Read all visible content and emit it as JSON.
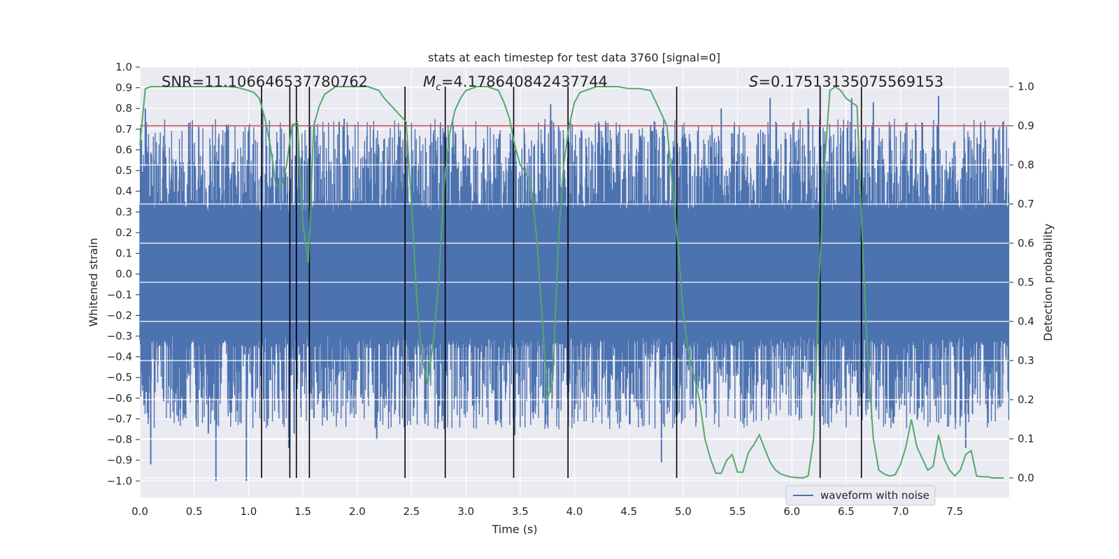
{
  "chart_data": {
    "type": "line",
    "title": "stats at each timestep for test data 3760 [signal=0]",
    "xlabel": "Time (s)",
    "ylabel_left": "Whitened strain",
    "ylabel_right": "Detection probability",
    "xlim": [
      0.0,
      8.0
    ],
    "ylim_left": [
      -1.08,
      1.0
    ],
    "ylim_right": [
      -0.05,
      1.05
    ],
    "grid": true,
    "legend": {
      "placement": "lower-right",
      "entries": [
        "waveform with noise"
      ]
    },
    "x_ticks": [
      "0.0",
      "0.5",
      "1.0",
      "1.5",
      "2.0",
      "2.5",
      "3.0",
      "3.5",
      "4.0",
      "4.5",
      "5.0",
      "5.5",
      "6.0",
      "6.5",
      "7.0",
      "7.5"
    ],
    "x_tick_values": [
      0.0,
      0.5,
      1.0,
      1.5,
      2.0,
      2.5,
      3.0,
      3.5,
      4.0,
      4.5,
      5.0,
      5.5,
      6.0,
      6.5,
      7.0,
      7.5
    ],
    "y_ticks_left": [
      "1.0",
      "0.9",
      "0.8",
      "0.7",
      "0.6",
      "0.5",
      "0.4",
      "0.3",
      "0.2",
      "0.1",
      "0.0",
      "−0.1",
      "−0.2",
      "−0.3",
      "−0.4",
      "−0.5",
      "−0.6",
      "−0.7",
      "−0.8",
      "−0.9",
      "−1.0"
    ],
    "y_tick_values_left": [
      1.0,
      0.9,
      0.8,
      0.7,
      0.6,
      0.5,
      0.4,
      0.3,
      0.2,
      0.1,
      0.0,
      -0.1,
      -0.2,
      -0.3,
      -0.4,
      -0.5,
      -0.6,
      -0.7,
      -0.8,
      -0.9,
      -1.0
    ],
    "y_ticks_right": [
      "1.0",
      "0.9",
      "0.8",
      "0.7",
      "0.6",
      "0.5",
      "0.4",
      "0.3",
      "0.2",
      "0.1",
      "0.0"
    ],
    "y_tick_values_right": [
      1.0,
      0.9,
      0.8,
      0.7,
      0.6,
      0.5,
      0.4,
      0.3,
      0.2,
      0.1,
      0.0
    ],
    "annotations": {
      "snr": {
        "text": "SNR=11.106646537780762"
      },
      "mc": {
        "prefix": "M",
        "subscript": "c",
        "suffix": "=4.178640842437744"
      },
      "s": {
        "prefix": "S",
        "suffix": "=0.17513135075569153"
      }
    },
    "waveform": {
      "name": "waveform with noise",
      "color": "#4c72b0",
      "duration_s": 8.0,
      "sample_step_s": 0.004,
      "core_amplitude": 0.3,
      "peak_amplitude_range": [
        0.5,
        0.75
      ],
      "spikes": [
        {
          "x": 0.05,
          "y": 0.8
        },
        {
          "x": 0.1,
          "y": -0.92
        },
        {
          "x": 0.45,
          "y": 0.73
        },
        {
          "x": 0.63,
          "y": -0.77
        },
        {
          "x": 0.7,
          "y": -1.0
        },
        {
          "x": 0.98,
          "y": -1.0
        },
        {
          "x": 1.13,
          "y": 0.78
        },
        {
          "x": 1.37,
          "y": -0.84
        },
        {
          "x": 1.42,
          "y": -0.77
        },
        {
          "x": 1.88,
          "y": 0.75
        },
        {
          "x": 2.18,
          "y": -0.8
        },
        {
          "x": 2.8,
          "y": -0.75
        },
        {
          "x": 3.45,
          "y": -0.78
        },
        {
          "x": 3.78,
          "y": 0.82
        },
        {
          "x": 4.7,
          "y": 0.72
        },
        {
          "x": 4.8,
          "y": -0.91
        },
        {
          "x": 5.35,
          "y": 0.8
        },
        {
          "x": 5.8,
          "y": 0.85
        },
        {
          "x": 6.15,
          "y": 0.8
        },
        {
          "x": 6.55,
          "y": 0.85
        },
        {
          "x": 6.75,
          "y": 0.83
        },
        {
          "x": 7.35,
          "y": 0.86
        },
        {
          "x": 7.6,
          "y": -0.84
        }
      ]
    },
    "threshold": {
      "y": 0.9,
      "axis": "right",
      "color": "#c44e52"
    },
    "probability": {
      "color": "#55a868",
      "x": [
        0.0,
        0.05,
        0.1,
        0.2,
        0.3,
        0.4,
        0.5,
        0.6,
        0.7,
        0.8,
        0.9,
        1.0,
        1.05,
        1.1,
        1.15,
        1.2,
        1.25,
        1.3,
        1.35,
        1.4,
        1.45,
        1.5,
        1.55,
        1.6,
        1.65,
        1.7,
        1.75,
        1.8,
        1.9,
        2.0,
        2.1,
        2.2,
        2.25,
        2.35,
        2.45,
        2.5,
        2.55,
        2.6,
        2.65,
        2.7,
        2.75,
        2.8,
        2.85,
        2.9,
        2.95,
        3.0,
        3.05,
        3.1,
        3.2,
        3.3,
        3.35,
        3.4,
        3.45,
        3.5,
        3.55,
        3.6,
        3.65,
        3.7,
        3.75,
        3.8,
        3.85,
        3.9,
        3.95,
        4.0,
        4.05,
        4.1,
        4.2,
        4.3,
        4.4,
        4.5,
        4.6,
        4.7,
        4.75,
        4.8,
        4.85,
        4.9,
        4.95,
        5.0,
        5.05,
        5.1,
        5.15,
        5.2,
        5.25,
        5.3,
        5.35,
        5.4,
        5.45,
        5.5,
        5.55,
        5.6,
        5.65,
        5.7,
        5.75,
        5.8,
        5.85,
        5.9,
        5.95,
        6.0,
        6.1,
        6.15,
        6.2,
        6.25,
        6.3,
        6.35,
        6.4,
        6.45,
        6.5,
        6.55,
        6.6,
        6.65,
        6.7,
        6.75,
        6.8,
        6.85,
        6.9,
        6.95,
        7.0,
        7.05,
        7.1,
        7.15,
        7.2,
        7.25,
        7.3,
        7.35,
        7.4,
        7.45,
        7.5,
        7.55,
        7.6,
        7.65,
        7.7,
        7.75,
        7.8,
        7.85,
        7.9,
        7.95
      ],
      "y": [
        0.85,
        0.995,
        1.0,
        1.0,
        1.0,
        1.0,
        1.0,
        1.0,
        1.0,
        1.0,
        0.998,
        0.99,
        0.985,
        0.97,
        0.92,
        0.85,
        0.75,
        0.74,
        0.8,
        0.9,
        0.91,
        0.65,
        0.55,
        0.9,
        0.95,
        0.98,
        0.99,
        1.0,
        1.0,
        1.0,
        1.0,
        0.99,
        0.97,
        0.94,
        0.91,
        0.7,
        0.45,
        0.3,
        0.24,
        0.35,
        0.5,
        0.75,
        0.88,
        0.94,
        0.97,
        0.99,
        0.995,
        1.0,
        1.0,
        0.99,
        0.96,
        0.92,
        0.85,
        0.8,
        0.78,
        0.75,
        0.62,
        0.42,
        0.2,
        0.25,
        0.6,
        0.8,
        0.9,
        0.96,
        0.985,
        0.99,
        1.0,
        1.0,
        1.0,
        0.995,
        0.995,
        0.99,
        0.96,
        0.93,
        0.9,
        0.75,
        0.6,
        0.42,
        0.32,
        0.26,
        0.2,
        0.1,
        0.05,
        0.012,
        0.012,
        0.045,
        0.06,
        0.015,
        0.015,
        0.065,
        0.085,
        0.11,
        0.075,
        0.04,
        0.02,
        0.01,
        0.005,
        0.002,
        0.0,
        0.005,
        0.1,
        0.5,
        0.8,
        0.99,
        1.0,
        0.99,
        0.97,
        0.96,
        0.95,
        0.6,
        0.3,
        0.1,
        0.02,
        0.01,
        0.005,
        0.008,
        0.035,
        0.08,
        0.15,
        0.08,
        0.05,
        0.02,
        0.03,
        0.11,
        0.05,
        0.02,
        0.005,
        0.02,
        0.06,
        0.07,
        0.005,
        0.003,
        0.003,
        0.0,
        0.0,
        0.0
      ]
    },
    "vertical_markers_x": [
      1.12,
      1.38,
      1.44,
      1.56,
      2.44,
      2.81,
      3.44,
      3.94,
      4.94,
      6.26,
      6.64
    ]
  }
}
